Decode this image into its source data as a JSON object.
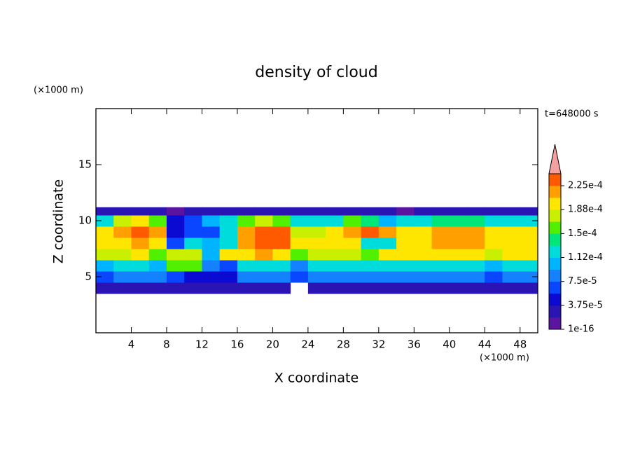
{
  "chart_data": {
    "type": "contour",
    "title": "density of cloud",
    "xlabel": "X coordinate",
    "ylabel": "Z coordinate",
    "x_unit": "(×1000 m)",
    "y_unit": "(×1000 m)",
    "annotation": "t=648000 s",
    "xlim": [
      0,
      50
    ],
    "ylim": [
      0,
      20
    ],
    "xticks": [
      4,
      8,
      12,
      16,
      20,
      24,
      28,
      32,
      36,
      40,
      44,
      48
    ],
    "yticks": [
      5,
      10,
      15
    ],
    "x_edges": [
      0,
      2,
      4,
      6,
      8,
      10,
      12,
      14,
      16,
      18,
      20,
      22,
      24,
      26,
      28,
      30,
      32,
      34,
      36,
      38,
      40,
      42,
      44,
      46,
      48,
      50
    ],
    "y_edges": [
      3.5,
      4.5,
      5.5,
      6.5,
      7.5,
      8.5,
      9.5,
      10.5,
      11.2
    ],
    "z": [
      [
        2.5e-05,
        3e-05,
        3e-05,
        3e-05,
        3e-05,
        3e-05,
        2e-05,
        2e-05,
        3e-05,
        3e-05,
        3e-05,
        0,
        3e-05,
        3e-05,
        3e-05,
        3e-05,
        3e-05,
        3e-05,
        3e-05,
        3e-05,
        3e-05,
        3e-05,
        3e-05,
        3e-05,
        3e-05
      ],
      [
        7e-05,
        8e-05,
        8e-05,
        8e-05,
        7e-05,
        5e-05,
        4e-05,
        5e-05,
        8e-05,
        8e-05,
        8e-05,
        6e-05,
        8e-05,
        8e-05,
        8e-05,
        8e-05,
        8e-05,
        8e-05,
        8e-05,
        8e-05,
        8e-05,
        8e-05,
        7e-05,
        8e-05,
        8e-05
      ],
      [
        0.00011,
        0.00012,
        0.00013,
        0.00011,
        0.00015,
        0.00016,
        8e-05,
        7e-05,
        0.00012,
        0.00013,
        0.00013,
        9e-05,
        0.00012,
        0.00013,
        0.00013,
        0.00013,
        0.00013,
        0.00013,
        0.00013,
        0.00013,
        0.00013,
        0.00013,
        0.00011,
        0.00013,
        0.00013
      ],
      [
        0.00017,
        0.00018,
        0.00019,
        0.00016,
        0.00017,
        0.00018,
        0.00011,
        0.00019,
        0.0002,
        0.00021,
        0.0002,
        0.00016,
        0.00018,
        0.00018,
        0.00017,
        0.00016,
        0.00019,
        0.00019,
        0.0002,
        0.0002,
        0.0002,
        0.0002,
        0.00018,
        0.00019,
        0.00019
      ],
      [
        0.00019,
        0.0002,
        0.00021,
        0.0002,
        6e-05,
        0.00012,
        0.00011,
        0.00013,
        0.00022,
        0.00023,
        0.00023,
        0.00019,
        0.00019,
        0.0002,
        0.00019,
        0.00013,
        0.00012,
        0.00019,
        0.0002,
        0.00021,
        0.00021,
        0.00021,
        0.0002,
        0.0002,
        0.0002
      ],
      [
        0.00019,
        0.00022,
        0.00023,
        0.00021,
        5e-05,
        7e-05,
        6e-05,
        0.00013,
        0.00021,
        0.00023,
        0.00023,
        0.00018,
        0.00018,
        0.00019,
        0.00021,
        0.00023,
        0.00022,
        0.00019,
        0.0002,
        0.00021,
        0.00021,
        0.00021,
        0.0002,
        0.0002,
        0.00019
      ],
      [
        0.00012,
        0.00017,
        0.00019,
        0.00016,
        4e-05,
        6e-05,
        0.0001,
        0.00013,
        0.00015,
        0.00017,
        0.00016,
        0.00013,
        0.00012,
        0.00013,
        0.00015,
        0.00014,
        0.00011,
        0.00012,
        0.00013,
        0.00014,
        0.00014,
        0.00014,
        0.00013,
        0.00013,
        0.00012
      ],
      [
        2.5e-05,
        2.5e-05,
        2.5e-05,
        2.5e-05,
        1.5e-05,
        2.5e-05,
        2.5e-05,
        2.5e-05,
        2.5e-05,
        2.5e-05,
        2.5e-05,
        2.5e-05,
        2.5e-05,
        2.5e-05,
        2.5e-05,
        2.5e-05,
        2.5e-05,
        1.5e-05,
        2.5e-05,
        2.5e-05,
        2.5e-05,
        2.5e-05,
        2.5e-05,
        2.5e-05,
        2.5e-05
      ]
    ],
    "colorbar": {
      "levels": [
        1e-16,
        1.875e-05,
        3.75e-05,
        5.625e-05,
        7.5e-05,
        9.375e-05,
        0.0001125,
        0.00013125,
        0.00015,
        0.00016875,
        0.0001875,
        0.00020625,
        0.000225,
        0.00024375
      ],
      "colors": [
        "#5a14a0",
        "#2a14b4",
        "#0a0ad2",
        "#0a46ff",
        "#1482ff",
        "#00b4ff",
        "#00dcdc",
        "#00e678",
        "#50f000",
        "#c8f000",
        "#ffe600",
        "#ffa000",
        "#ff5a00"
      ],
      "extend_color": "#f4a0a0",
      "ticks": [
        {
          "value": 1e-16,
          "label": "1e-16"
        },
        {
          "value": 3.75e-05,
          "label": "3.75e-5"
        },
        {
          "value": 7.5e-05,
          "label": "7.5e-5"
        },
        {
          "value": 0.0001125,
          "label": "1.12e-4"
        },
        {
          "value": 0.00015,
          "label": "1.5e-4"
        },
        {
          "value": 0.0001875,
          "label": "1.88e-4"
        },
        {
          "value": 0.000225,
          "label": "2.25e-4"
        }
      ]
    }
  }
}
